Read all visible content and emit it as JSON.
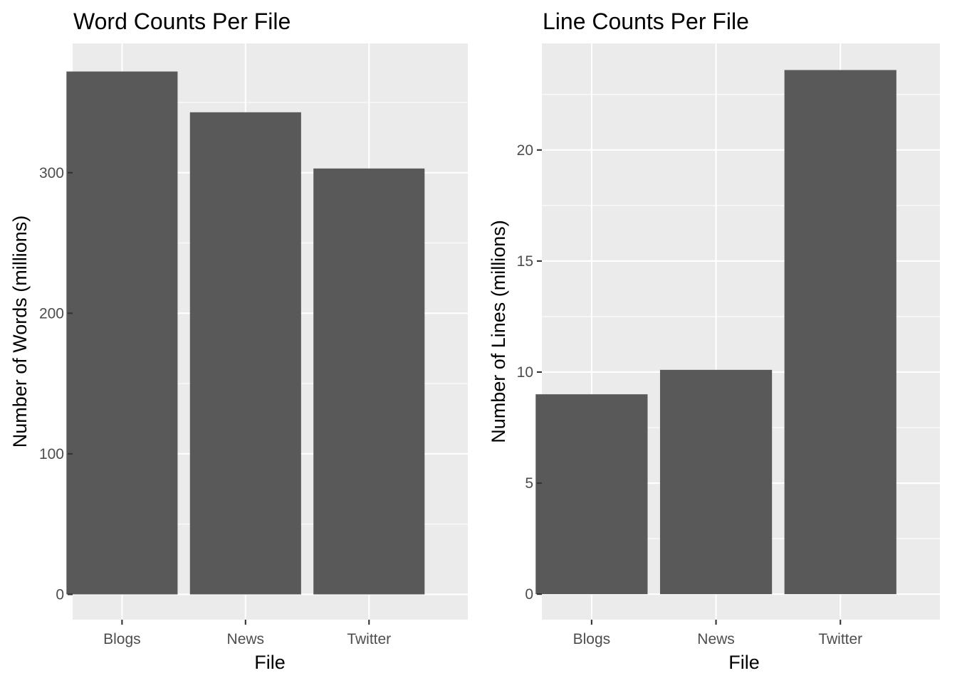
{
  "colors": {
    "bar_fill": "#595959",
    "panel_background": "#EBEBEB",
    "grid": "#FFFFFF",
    "tick_text": "#4D4D4D"
  },
  "chart_data": [
    {
      "type": "bar",
      "title": "Word Counts Per File",
      "xlabel": "File",
      "ylabel": "Number of Words (millions)",
      "categories": [
        "Blogs",
        "News",
        "Twitter"
      ],
      "values": [
        372,
        343,
        303
      ],
      "yticks": [
        0,
        100,
        200,
        300
      ],
      "ylim": [
        -18,
        392
      ],
      "grid": true,
      "legend": "none"
    },
    {
      "type": "bar",
      "title": "Line Counts Per File",
      "xlabel": "File",
      "ylabel": "Number of Lines (millions)",
      "categories": [
        "Blogs",
        "News",
        "Twitter"
      ],
      "values": [
        9.0,
        10.1,
        23.6
      ],
      "yticks": [
        0,
        5,
        10,
        15,
        20
      ],
      "ylim": [
        -1.15,
        24.8
      ],
      "grid": true,
      "legend": "none"
    }
  ]
}
